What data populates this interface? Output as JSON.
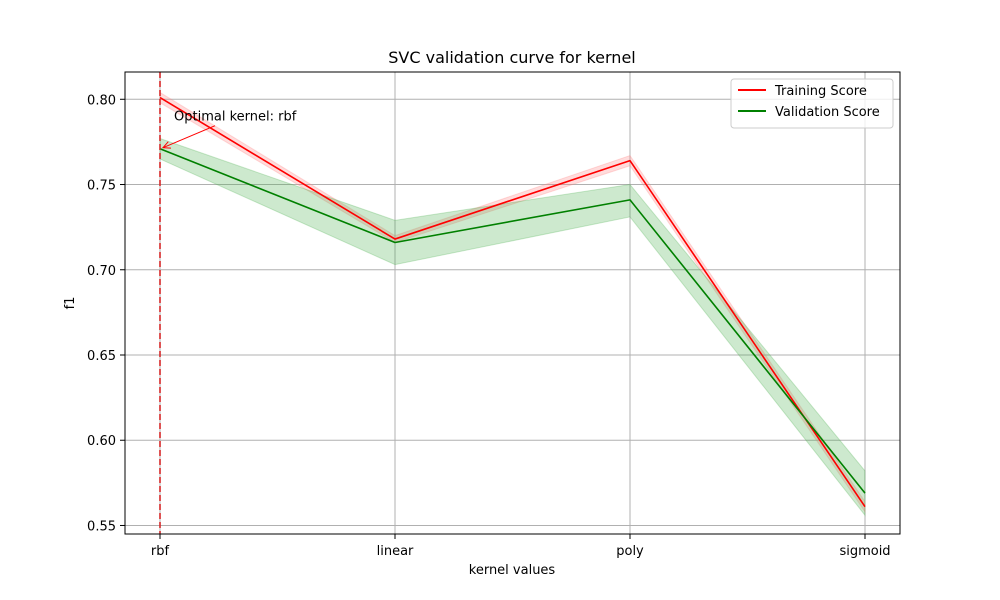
{
  "chart_data": {
    "type": "line",
    "title": "SVC validation curve for kernel",
    "xlabel": "kernel values",
    "ylabel": "f1",
    "categories": [
      "rbf",
      "linear",
      "poly",
      "sigmoid"
    ],
    "ylim": [
      0.545,
      0.816
    ],
    "yticks": [
      0.55,
      0.6,
      0.65,
      0.7,
      0.75,
      0.8
    ],
    "ytick_labels": [
      "0.55",
      "0.60",
      "0.65",
      "0.70",
      "0.75",
      "0.80"
    ],
    "grid": true,
    "legend_position": "top-right",
    "series": [
      {
        "name": "Training Score",
        "color": "#ff0000",
        "band_color": "#ff8080",
        "values": [
          0.801,
          0.718,
          0.764,
          0.561
        ],
        "upper": [
          0.804,
          0.72,
          0.767,
          0.564
        ],
        "lower": [
          0.798,
          0.716,
          0.761,
          0.558
        ]
      },
      {
        "name": "Validation Score",
        "color": "#008000",
        "band_color": "#4caf50",
        "values": [
          0.771,
          0.716,
          0.741,
          0.569
        ],
        "upper": [
          0.777,
          0.729,
          0.75,
          0.582
        ],
        "lower": [
          0.765,
          0.703,
          0.731,
          0.556
        ]
      }
    ],
    "optimal_line": {
      "x": "rbf",
      "color": "#d62728"
    },
    "annotation": {
      "text": "Optimal kernel: rbf",
      "target_x": "rbf",
      "target_y": 0.771,
      "color": "#ff0000"
    }
  }
}
